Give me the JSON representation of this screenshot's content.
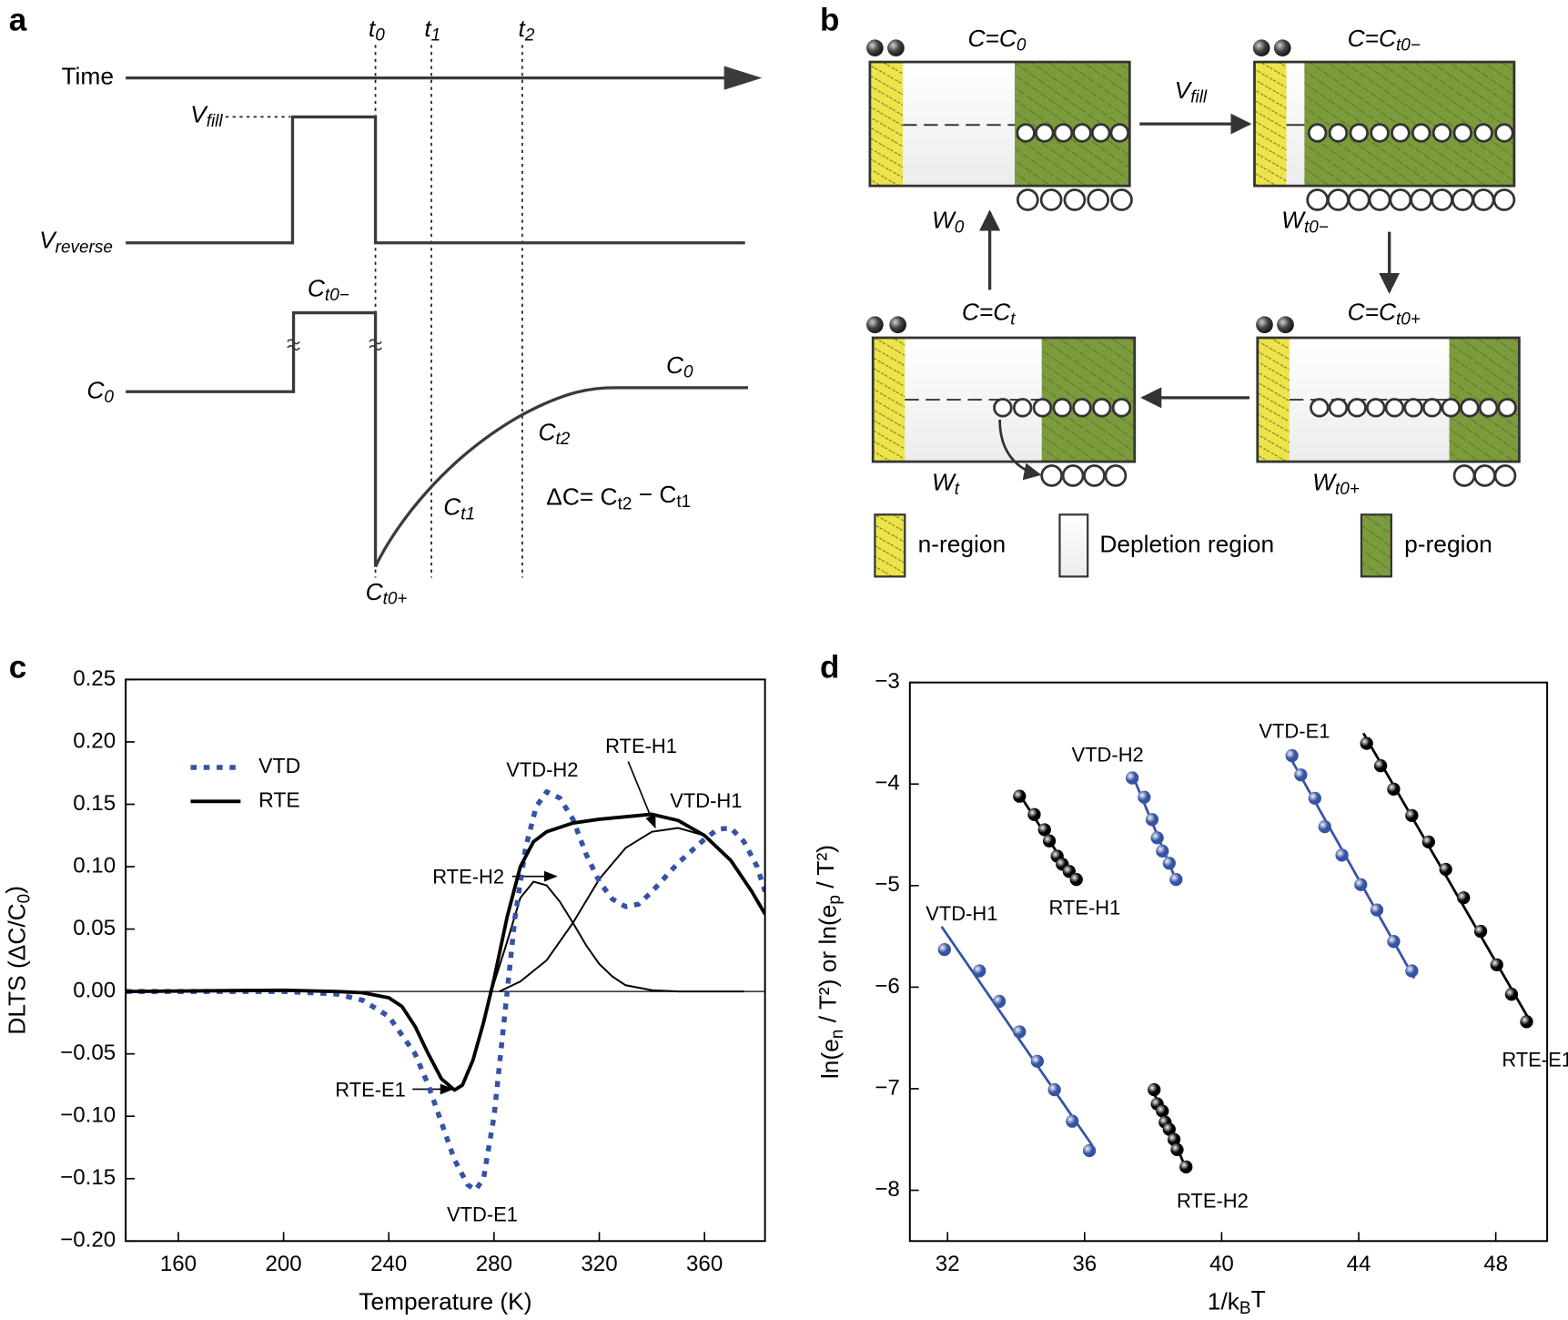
{
  "panel_labels": [
    "a",
    "b",
    "c",
    "d"
  ],
  "panel_a": {
    "time": "Time",
    "t0": [
      "t",
      "0"
    ],
    "t1": [
      "t",
      "1"
    ],
    "t2": [
      "t",
      "2"
    ],
    "vfill": [
      "V",
      "fill"
    ],
    "vreverse": [
      "V",
      "reverse"
    ],
    "ct0m": [
      "C",
      "t0−"
    ],
    "c0_left": [
      "C",
      "0"
    ],
    "c0_right": [
      "C",
      "0"
    ],
    "ct2": [
      "C",
      "t2"
    ],
    "ct1": [
      "C",
      "t1"
    ],
    "ct0p": [
      "C",
      "t0+"
    ],
    "delta": [
      "ΔC= C",
      "t2",
      " − C",
      "t1"
    ]
  },
  "panel_b": {
    "c_c0": [
      "C=C",
      "0"
    ],
    "c_ct0m": [
      "C=C",
      "t0−"
    ],
    "c_ct0p": [
      "C=C",
      "t0+"
    ],
    "c_ct": [
      "C=C",
      "t"
    ],
    "vfill": [
      "V",
      "fill"
    ],
    "w0": [
      "W",
      "0"
    ],
    "wt0m": [
      "W",
      "t0−"
    ],
    "wt0p": [
      "W",
      "t0+"
    ],
    "wt": [
      "W",
      "t"
    ],
    "legend": [
      "n-region",
      "Depletion region",
      "p-region"
    ]
  },
  "chart_data": [
    {
      "type": "line",
      "xlabel": [
        "Temperature (K)"
      ],
      "ylabel": [
        "DLTS (ΔC/C",
        "0",
        ")"
      ],
      "xlim": [
        140,
        383
      ],
      "ylim": [
        -0.2,
        0.25
      ],
      "xticks": [
        160,
        200,
        240,
        280,
        320,
        360
      ],
      "yticks": [
        0.25,
        {
          "value": 0.2,
          "label": "0.20"
        },
        0.15,
        {
          "value": 0.1,
          "label": "0.10"
        },
        0.05,
        {
          "value": 0,
          "label": "0.00"
        },
        {
          "value": -0.05,
          "label": "−0.05"
        },
        {
          "value": -0.1,
          "label": "−0.10"
        },
        {
          "value": -0.15,
          "label": "−0.15"
        },
        {
          "value": -0.2,
          "label": "−0.20"
        }
      ],
      "legend": "upper left",
      "series": [
        {
          "name": "VTD",
          "color": "#3553a4",
          "style": "dotted",
          "x": [
            140,
            200,
            220,
            230,
            240,
            250,
            255,
            260,
            265,
            270,
            273,
            276,
            280,
            284,
            288,
            292,
            296,
            300,
            305,
            310,
            315,
            320,
            325,
            330,
            335,
            340,
            350,
            360,
            365,
            370,
            375,
            380,
            383
          ],
          "values": [
            0,
            0,
            -0.002,
            -0.007,
            -0.02,
            -0.05,
            -0.075,
            -0.105,
            -0.135,
            -0.155,
            -0.159,
            -0.15,
            -0.1,
            -0.02,
            0.06,
            0.115,
            0.148,
            0.16,
            0.155,
            0.138,
            0.11,
            0.088,
            0.074,
            0.068,
            0.07,
            0.08,
            0.103,
            0.122,
            0.13,
            0.131,
            0.12,
            0.1,
            0.08
          ]
        },
        {
          "name": "RTE",
          "color": "#000000",
          "style": "solid",
          "x": [
            140,
            200,
            220,
            230,
            240,
            245,
            250,
            255,
            260,
            265,
            268,
            272,
            276,
            280,
            285,
            290,
            295,
            300,
            310,
            320,
            330,
            340,
            350,
            360,
            370,
            378,
            383
          ],
          "values": [
            0,
            0.001,
            0,
            -0.001,
            -0.005,
            -0.012,
            -0.028,
            -0.05,
            -0.07,
            -0.079,
            -0.075,
            -0.055,
            -0.025,
            0.01,
            0.06,
            0.1,
            0.12,
            0.128,
            0.135,
            0.138,
            0.14,
            0.142,
            0.137,
            0.125,
            0.105,
            0.08,
            0.062
          ]
        }
      ],
      "components": [
        {
          "color": "#000000",
          "x": [
            279,
            285,
            290,
            295,
            300,
            305,
            310,
            315,
            320,
            325,
            330,
            340,
            350,
            375
          ],
          "values": [
            0,
            0.04,
            0.075,
            0.088,
            0.085,
            0.072,
            0.055,
            0.037,
            0.022,
            0.012,
            0.005,
            0.001,
            0,
            0
          ]
        },
        {
          "color": "#000000",
          "x": [
            282,
            290,
            300,
            310,
            320,
            330,
            340,
            350,
            360,
            370,
            378,
            383
          ],
          "values": [
            0,
            0.008,
            0.025,
            0.055,
            0.09,
            0.115,
            0.128,
            0.131,
            0.125,
            0.105,
            0.08,
            0.062
          ]
        }
      ],
      "annotations": [
        {
          "text": "VTD-H2",
          "color": "#3553a4"
        },
        {
          "text": "RTE-H1",
          "color": "#000000"
        },
        {
          "text": "VTD-H1",
          "color": "#3553a4"
        },
        {
          "text": "RTE-H2",
          "color": "#000000"
        },
        {
          "text": "RTE-E1",
          "color": "#000000"
        },
        {
          "text": "VTD-E1",
          "color": "#3553a4"
        }
      ]
    },
    {
      "type": "scatter",
      "xlabel": [
        "1/k",
        "B",
        "T"
      ],
      "ylabel": [
        "ln(e",
        "n",
        " / T²) or ln(e",
        "p",
        " / T²)"
      ],
      "xlim": [
        30.9,
        49.5
      ],
      "ylim": [
        -8.5,
        -3
      ],
      "xticks": [
        32,
        36,
        40,
        44,
        48
      ],
      "yticks": [
        {
          "value": -3,
          "label": "−3"
        },
        {
          "value": -4,
          "label": "−4"
        },
        {
          "value": -5,
          "label": "−5"
        },
        {
          "value": -6,
          "label": "−6"
        },
        {
          "value": -7,
          "label": "−7"
        },
        {
          "value": -8,
          "label": "−8"
        }
      ],
      "fit": true,
      "series": [
        {
          "name": "VTD-H1",
          "color": "#3553a4",
          "x": [
            31.91,
            32.93,
            33.51,
            34.1,
            34.62,
            35.12,
            35.64,
            36.14
          ],
          "values": [
            -5.63,
            -5.84,
            -6.14,
            -6.44,
            -6.73,
            -7.01,
            -7.32,
            -7.61
          ]
        },
        {
          "name": "RTE-H1",
          "color": "#000000",
          "x": [
            34.1,
            34.53,
            34.83,
            34.97,
            35.2,
            35.35,
            35.55,
            35.76
          ],
          "values": [
            -4.12,
            -4.3,
            -4.45,
            -4.56,
            -4.71,
            -4.79,
            -4.86,
            -4.94
          ]
        },
        {
          "name": "VTD-H2",
          "color": "#3553a4",
          "x": [
            37.39,
            37.74,
            37.97,
            38.12,
            38.27,
            38.47,
            38.67
          ],
          "values": [
            -3.94,
            -4.13,
            -4.35,
            -4.53,
            -4.66,
            -4.78,
            -4.94
          ]
        },
        {
          "name": "RTE-H2",
          "color": "#000000",
          "x": [
            38.03,
            38.12,
            38.27,
            38.35,
            38.47,
            38.61,
            38.7,
            38.96
          ],
          "values": [
            -7.01,
            -7.15,
            -7.22,
            -7.33,
            -7.4,
            -7.5,
            -7.6,
            -7.77
          ]
        },
        {
          "name": "VTD-E1",
          "color": "#3553a4",
          "x": [
            42.05,
            42.31,
            42.72,
            43.01,
            43.51,
            44.06,
            44.53,
            45.02,
            45.55
          ],
          "values": [
            -3.72,
            -3.91,
            -4.14,
            -4.42,
            -4.7,
            -4.99,
            -5.24,
            -5.55,
            -5.84
          ]
        },
        {
          "name": "RTE-E1",
          "color": "#000000",
          "x": [
            44.23,
            44.64,
            45.02,
            45.55,
            46.04,
            46.54,
            47.06,
            47.56,
            48.03,
            48.46,
            48.9
          ],
          "values": [
            -3.6,
            -3.82,
            -4.05,
            -4.31,
            -4.57,
            -4.84,
            -5.12,
            -5.45,
            -5.78,
            -6.07,
            -6.34
          ]
        }
      ]
    }
  ]
}
